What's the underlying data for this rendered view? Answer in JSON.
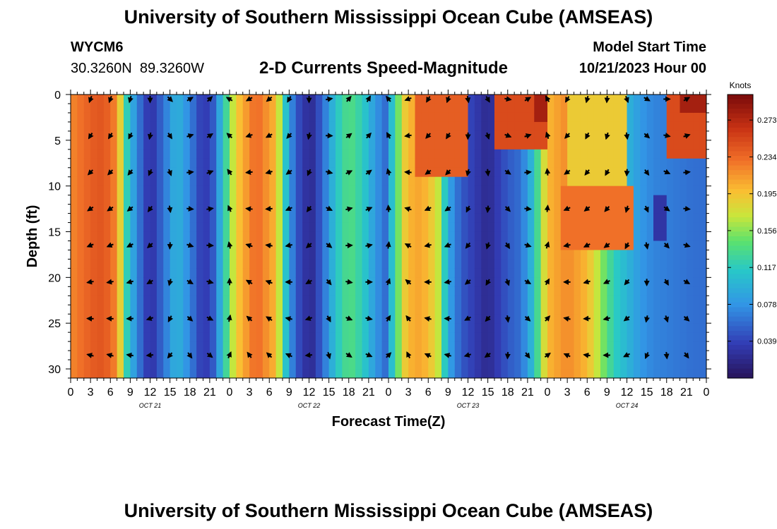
{
  "header": {
    "title": "University of Southern Mississippi Ocean Cube (AMSEAS)",
    "station_id": "WYCM6",
    "station_coords": "30.3260N  89.3260W",
    "plot_title": "2-D Currents Speed-Magnitude",
    "model_start_label": "Model Start Time",
    "model_start_value": "10/21/2023 Hour 00"
  },
  "footer": {
    "title": "University of Southern Mississippi Ocean Cube (AMSEAS)"
  },
  "chart_data": {
    "type": "heatmap",
    "title": "2-D Currents Speed-Magnitude",
    "xlabel": "Forecast Time(Z)",
    "ylabel": "Depth (ft)",
    "x_hours_range": [
      0,
      96
    ],
    "ylim": [
      0,
      31
    ],
    "y_ticks": [
      0,
      5,
      10,
      15,
      20,
      25,
      30
    ],
    "x_tick_labels": [
      "0",
      "3",
      "6",
      "9",
      "12",
      "15",
      "18",
      "21",
      "0",
      "3",
      "6",
      "9",
      "12",
      "15",
      "18",
      "21",
      "0",
      "3",
      "6",
      "9",
      "12",
      "15",
      "18",
      "21",
      "0",
      "3",
      "6",
      "9",
      "12",
      "15",
      "18",
      "21",
      "0"
    ],
    "day_labels": [
      {
        "label": "OCT 21",
        "hour": 12
      },
      {
        "label": "OCT 22",
        "hour": 36
      },
      {
        "label": "OCT 23",
        "hour": 60
      },
      {
        "label": "OCT 24",
        "hour": 84
      }
    ],
    "colorbar": {
      "units": "Knots",
      "min": 0.0,
      "max": 0.3,
      "tick_values": [
        0.273,
        0.234,
        0.195,
        0.156,
        0.117,
        0.078,
        0.039
      ],
      "tick_labels": [
        "0.273",
        "0.234",
        "0.195",
        "0.156",
        "0.117",
        "0.078",
        "0.039"
      ]
    },
    "speed_profile_by_time": [
      {
        "hour": 0,
        "speed": 0.22
      },
      {
        "hour": 3,
        "speed": 0.24
      },
      {
        "hour": 5,
        "speed": 0.245
      },
      {
        "hour": 7,
        "speed": 0.22
      },
      {
        "hour": 8.5,
        "speed": 0.12
      },
      {
        "hour": 10,
        "speed": 0.07
      },
      {
        "hour": 12,
        "speed": 0.025
      },
      {
        "hour": 14,
        "speed": 0.06
      },
      {
        "hour": 16,
        "speed": 0.1
      },
      {
        "hour": 18,
        "speed": 0.07
      },
      {
        "hour": 20,
        "speed": 0.03
      },
      {
        "hour": 21.5,
        "speed": 0.05
      },
      {
        "hour": 23,
        "speed": 0.11
      },
      {
        "hour": 25,
        "speed": 0.19
      },
      {
        "hour": 28,
        "speed": 0.235
      },
      {
        "hour": 31,
        "speed": 0.2
      },
      {
        "hour": 33,
        "speed": 0.08
      },
      {
        "hour": 35,
        "speed": 0.03
      },
      {
        "hour": 36.5,
        "speed": 0.025
      },
      {
        "hour": 38,
        "speed": 0.055
      },
      {
        "hour": 40,
        "speed": 0.11
      },
      {
        "hour": 42,
        "speed": 0.14
      },
      {
        "hour": 44,
        "speed": 0.12
      },
      {
        "hour": 46,
        "speed": 0.08
      },
      {
        "hour": 47.5,
        "speed": 0.06
      },
      {
        "hour": 49,
        "speed": 0.13
      },
      {
        "hour": 50.5,
        "speed": 0.19
      },
      {
        "hour": 52,
        "speed": 0.21
      },
      {
        "hour": 54,
        "speed": 0.2
      },
      {
        "hour": 55.5,
        "speed": 0.17
      },
      {
        "hour": 57,
        "speed": 0.09
      },
      {
        "hour": 59,
        "speed": 0.05
      },
      {
        "hour": 61,
        "speed": 0.035
      },
      {
        "hour": 63,
        "speed": 0.02
      },
      {
        "hour": 64.5,
        "speed": 0.035
      },
      {
        "hour": 66,
        "speed": 0.05
      },
      {
        "hour": 68,
        "speed": 0.06
      },
      {
        "hour": 70,
        "speed": 0.11
      },
      {
        "hour": 72,
        "speed": 0.2
      },
      {
        "hour": 75,
        "speed": 0.22
      },
      {
        "hour": 78,
        "speed": 0.2
      },
      {
        "hour": 80,
        "speed": 0.16
      },
      {
        "hour": 82,
        "speed": 0.12
      },
      {
        "hour": 84,
        "speed": 0.1
      },
      {
        "hour": 86,
        "speed": 0.08
      },
      {
        "hour": 88,
        "speed": 0.07
      },
      {
        "hour": 91,
        "speed": 0.065
      },
      {
        "hour": 94,
        "speed": 0.06
      },
      {
        "hour": 96,
        "speed": 0.06
      }
    ],
    "surface_anomalies": [
      {
        "hour_start": 52,
        "hour_end": 60,
        "depth_max": 9,
        "speed": 0.24
      },
      {
        "hour_start": 64,
        "hour_end": 72,
        "depth_max": 6,
        "speed": 0.25
      },
      {
        "hour_start": 70,
        "hour_end": 72,
        "depth_max": 3,
        "speed": 0.28
      },
      {
        "hour_start": 75,
        "hour_end": 84,
        "depth_max": 10,
        "speed": 0.19
      },
      {
        "hour_start": 74,
        "hour_end": 85,
        "depth_min": 10,
        "depth_max": 17,
        "speed": 0.23
      },
      {
        "hour_start": 90,
        "hour_end": 96,
        "depth_max": 7,
        "speed": 0.25
      },
      {
        "hour_start": 92,
        "hour_end": 96,
        "depth_max": 2,
        "speed": 0.28
      },
      {
        "hour_start": 88,
        "hour_end": 90,
        "depth_min": 11,
        "depth_max": 16,
        "speed": 0.03
      }
    ],
    "vector_depths_ft": [
      0.5,
      4.5,
      8.5,
      12.5,
      16.5,
      20.5,
      24.5,
      28.5
    ],
    "vector_hours": [
      0,
      3,
      6,
      9,
      12,
      15,
      18,
      21,
      24,
      27,
      30,
      33,
      36,
      39,
      42,
      45,
      48,
      51,
      54,
      57,
      60,
      63,
      66,
      69,
      72,
      75,
      78,
      81,
      84,
      87,
      90,
      93,
      96
    ],
    "vector_directions_deg_by_hour": [
      225,
      200,
      200,
      195,
      180,
      135,
      60,
      45,
      300,
      240,
      230,
      210,
      180,
      80,
      40,
      30,
      320,
      250,
      210,
      200,
      170,
      150,
      100,
      60,
      330,
      210,
      195,
      185,
      160,
      120,
      90,
      60,
      200
    ]
  }
}
